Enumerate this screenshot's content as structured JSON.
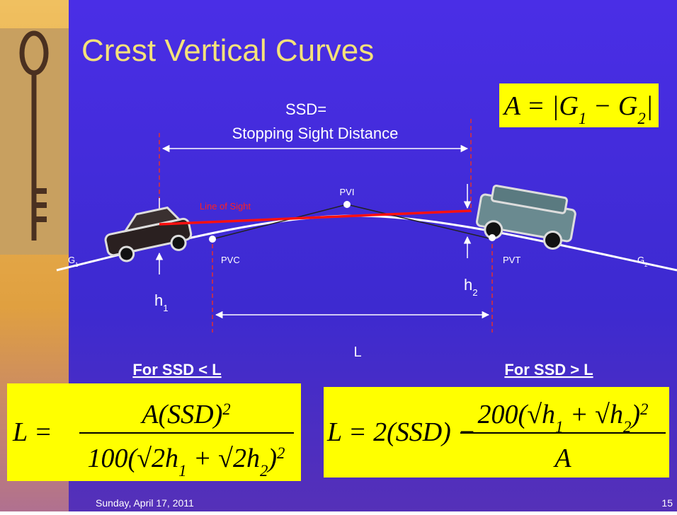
{
  "title": "Crest Vertical Curves",
  "diagram": {
    "ssd_label": "SSD=",
    "ssd_full": "Stopping Sight Distance",
    "line_of_sight": "Line of Sight",
    "pvi": "PVI",
    "pvc": "PVC",
    "pvt": "PVT",
    "g1": [
      {
        "text": "G",
        "sub": "1"
      }
    ],
    "g2": [
      {
        "text": "G",
        "sub": "2"
      }
    ],
    "h1": [
      {
        "text": "h",
        "sub": "1"
      }
    ],
    "h2": [
      {
        "text": "h",
        "sub": "2"
      }
    ],
    "l": "L"
  },
  "formula_top": [
    {
      "text": "A = |G",
      "sub": "1"
    },
    {
      "text": " − G",
      "sub": "2"
    },
    {
      "text": "|"
    }
  ],
  "left": {
    "heading": "For SSD < L",
    "lhs": [
      {
        "text": "L ="
      }
    ],
    "numerator": [
      {
        "text": "A(SSD)",
        "sup": "2"
      }
    ],
    "denominator": [
      {
        "text": "100(√2h",
        "sub": "1"
      },
      {
        "text": " + √2h",
        "sub": "2"
      },
      {
        "text": ")",
        "sup": "2"
      }
    ]
  },
  "right": {
    "heading": "For SSD > L",
    "lhs": [
      {
        "text": "L = 2(SSD) −"
      }
    ],
    "numerator": [
      {
        "text": "200(√h",
        "sub": "1"
      },
      {
        "text": " + √h",
        "sub": "2"
      },
      {
        "text": ")",
        "sup": "2"
      }
    ],
    "denominator": [
      {
        "text": "A"
      }
    ]
  },
  "footer": {
    "date": "Sunday, April 17, 2011",
    "page": "15"
  }
}
